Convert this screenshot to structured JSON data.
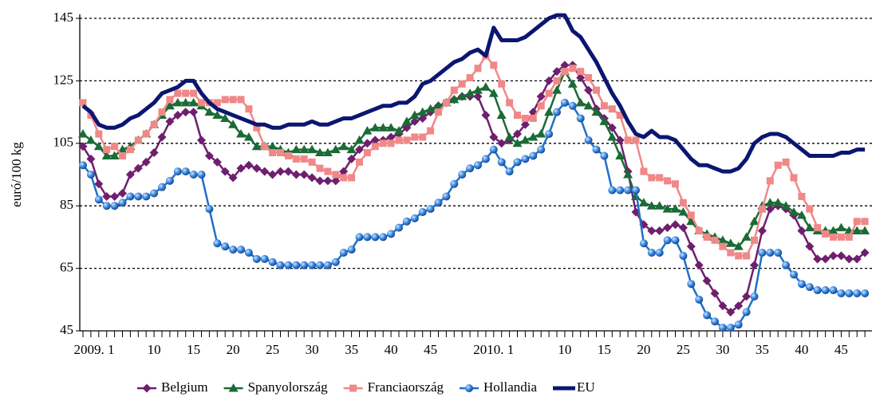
{
  "chart_data": {
    "type": "line",
    "y_label": "euró/100 kg",
    "categories": [
      "2009. 1",
      null,
      null,
      null,
      null,
      null,
      null,
      null,
      null,
      "10",
      null,
      null,
      null,
      null,
      "15",
      null,
      null,
      null,
      null,
      "20",
      null,
      null,
      null,
      null,
      "25",
      null,
      null,
      null,
      null,
      "30",
      null,
      null,
      null,
      null,
      "35",
      null,
      null,
      null,
      null,
      "40",
      null,
      null,
      null,
      null,
      "45",
      null,
      null,
      null,
      null,
      null,
      null,
      null,
      "2010. 1",
      null,
      null,
      null,
      null,
      null,
      null,
      null,
      null,
      "10",
      null,
      null,
      null,
      null,
      "15",
      null,
      null,
      null,
      null,
      "20",
      null,
      null,
      null,
      null,
      "25",
      null,
      null,
      null,
      null,
      "30",
      null,
      null,
      null,
      null,
      "35",
      null,
      null,
      null,
      null,
      "40",
      null,
      null,
      null,
      null,
      "45",
      null,
      null,
      null
    ],
    "ylim": [
      45,
      145
    ],
    "yticks": [
      45,
      65,
      85,
      105,
      125,
      145
    ],
    "grid": true,
    "legend": "bottom",
    "series": [
      {
        "name": "Belgium",
        "color": "#6e1f6e",
        "marker": "diamond",
        "values": [
          104,
          100,
          92,
          88,
          88,
          89,
          95,
          97,
          99,
          102,
          107,
          112,
          114,
          115,
          115,
          106,
          101,
          99,
          96,
          94,
          97,
          98,
          97,
          96,
          95,
          96,
          96,
          95,
          95,
          94,
          93,
          93,
          93,
          96,
          100,
          103,
          105,
          106,
          106,
          107,
          108,
          110,
          112,
          113,
          115,
          117,
          118,
          119,
          120,
          120,
          120,
          114,
          107,
          105,
          106,
          108,
          111,
          115,
          120,
          125,
          128,
          130,
          130,
          126,
          122,
          116,
          113,
          110,
          106,
          96,
          83,
          79,
          77,
          77,
          78,
          79,
          78,
          72,
          66,
          61,
          57,
          53,
          51,
          53,
          56,
          66,
          77,
          84,
          85,
          84,
          82,
          77,
          72,
          68,
          68,
          69,
          69,
          68,
          68,
          70
        ]
      },
      {
        "name": "Spanyolország",
        "color": "#1a6b35",
        "marker": "triangle",
        "values": [
          108,
          106,
          104,
          101,
          101,
          103,
          104,
          106,
          108,
          111,
          114,
          117,
          118,
          118,
          118,
          117,
          115,
          114,
          113,
          111,
          108,
          107,
          104,
          104,
          104,
          103,
          102,
          103,
          103,
          103,
          102,
          102,
          103,
          104,
          103,
          106,
          109,
          110,
          110,
          110,
          109,
          112,
          114,
          115,
          116,
          117,
          118,
          119,
          120,
          121,
          122,
          123,
          121,
          114,
          107,
          105,
          106,
          107,
          108,
          115,
          122,
          128,
          124,
          118,
          117,
          115,
          112,
          107,
          101,
          95,
          88,
          86,
          85,
          85,
          84,
          84,
          83,
          80,
          77,
          76,
          75,
          74,
          73,
          72,
          75,
          80,
          85,
          86,
          86,
          85,
          83,
          82,
          78,
          77,
          77,
          77,
          78,
          77,
          77,
          77
        ]
      },
      {
        "name": "Franciaország",
        "color": "#f08888",
        "marker": "square",
        "values": [
          118,
          114,
          108,
          103,
          104,
          101,
          103,
          106,
          108,
          111,
          115,
          119,
          121,
          121,
          121,
          118,
          118,
          118,
          119,
          119,
          119,
          116,
          110,
          104,
          102,
          102,
          101,
          100,
          100,
          99,
          97,
          96,
          95,
          94,
          94,
          99,
          102,
          104,
          105,
          105,
          106,
          106,
          107,
          107,
          109,
          115,
          118,
          122,
          124,
          126,
          129,
          133,
          130,
          124,
          118,
          114,
          113,
          113,
          117,
          121,
          125,
          128,
          129,
          128,
          126,
          122,
          117,
          116,
          114,
          106,
          106,
          96,
          94,
          94,
          93,
          92,
          86,
          82,
          77,
          75,
          74,
          72,
          70,
          69,
          69,
          74,
          84,
          93,
          98,
          99,
          94,
          88,
          84,
          78,
          76,
          75,
          75,
          75,
          80,
          80
        ]
      },
      {
        "name": "Hollandia",
        "color": "#1f6fc8",
        "marker": "circle",
        "values": [
          98,
          95,
          87,
          85,
          85,
          86,
          88,
          88,
          88,
          89,
          91,
          93,
          96,
          96,
          95,
          95,
          84,
          73,
          72,
          71,
          71,
          70,
          68,
          68,
          67,
          66,
          66,
          66,
          66,
          66,
          66,
          66,
          67,
          70,
          71,
          75,
          75,
          75,
          75,
          76,
          78,
          80,
          81,
          83,
          84,
          86,
          88,
          92,
          95,
          97,
          98,
          100,
          103,
          99,
          96,
          99,
          100,
          101,
          103,
          108,
          115,
          118,
          117,
          113,
          106,
          103,
          101,
          90,
          90,
          90,
          90,
          73,
          70,
          70,
          74,
          74,
          69,
          60,
          55,
          50,
          48,
          46,
          46,
          47,
          51,
          56,
          70,
          70,
          70,
          66,
          63,
          60,
          59,
          58,
          58,
          58,
          57,
          57,
          57,
          57
        ]
      },
      {
        "name": "EU",
        "color": "#0a1670",
        "values": [
          117,
          115,
          111,
          110,
          110,
          111,
          113,
          114,
          116,
          118,
          121,
          122,
          123,
          125,
          125,
          121,
          118,
          116,
          115,
          114,
          113,
          112,
          111,
          111,
          110,
          110,
          111,
          111,
          111,
          112,
          111,
          111,
          112,
          113,
          113,
          114,
          115,
          116,
          117,
          117,
          118,
          118,
          120,
          124,
          125,
          127,
          129,
          131,
          132,
          134,
          135,
          133,
          142,
          138,
          138,
          138,
          139,
          141,
          143,
          145,
          146,
          146,
          141,
          139,
          135,
          131,
          126,
          121,
          117,
          112,
          108,
          107,
          109,
          107,
          107,
          106,
          103,
          100,
          98,
          98,
          97,
          96,
          96,
          97,
          100,
          105,
          107,
          108,
          108,
          107,
          105,
          103,
          101,
          101,
          101,
          101,
          102,
          102,
          103,
          103
        ]
      }
    ]
  }
}
